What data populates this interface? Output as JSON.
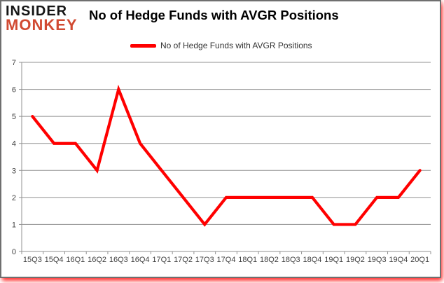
{
  "logo": {
    "line1": "INSIDER",
    "line2": "MONKEY"
  },
  "title": "No of Hedge Funds with AVGR Positions",
  "legend": {
    "label": "No of Hedge Funds with AVGR Positions"
  },
  "chart_data": {
    "type": "line",
    "title": "No of Hedge Funds with AVGR Positions",
    "categories": [
      "15Q3",
      "15Q4",
      "16Q1",
      "16Q2",
      "16Q3",
      "16Q4",
      "17Q1",
      "17Q2",
      "17Q3",
      "17Q4",
      "18Q1",
      "18Q2",
      "18Q3",
      "18Q4",
      "19Q1",
      "19Q2",
      "19Q3",
      "19Q4",
      "20Q1"
    ],
    "series": [
      {
        "name": "No of Hedge Funds with AVGR Positions",
        "color": "#ff0000",
        "values": [
          5,
          4,
          4,
          3,
          6,
          4,
          3,
          2,
          1,
          2,
          2,
          2,
          2,
          2,
          1,
          1,
          2,
          2,
          3
        ]
      }
    ],
    "xlabel": "",
    "ylabel": "",
    "ylim": [
      0,
      7
    ],
    "yticks": [
      0,
      1,
      2,
      3,
      4,
      5,
      6,
      7
    ],
    "grid": "horizontal",
    "legend_position": "top-center"
  },
  "colors": {
    "line": "#ff0000",
    "grid": "#919191",
    "tick_label": "#3f3f3f",
    "title_text": "#000000",
    "logo_black": "#151515",
    "logo_red": "#d14a32",
    "frame_border": "#6f6f6f",
    "glow": "#ff0000",
    "background": "#ffffff"
  }
}
